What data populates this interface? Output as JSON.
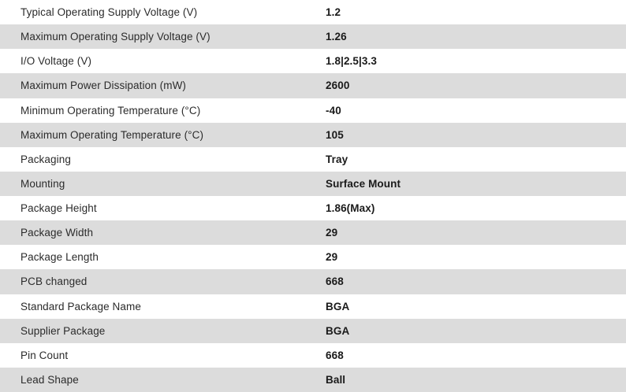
{
  "colors": {
    "row_background": "#ffffff",
    "row_alt_background": "#dcdcdc",
    "label_text": "#2b2b2b",
    "value_text": "#1a1a1a"
  },
  "table": {
    "rows": [
      {
        "label": "Typical Operating Supply Voltage (V)",
        "value": "1.2"
      },
      {
        "label": "Maximum Operating Supply Voltage (V)",
        "value": "1.26"
      },
      {
        "label": "I/O Voltage (V)",
        "value": "1.8|2.5|3.3"
      },
      {
        "label": "Maximum Power Dissipation (mW)",
        "value": "2600"
      },
      {
        "label": "Minimum Operating Temperature (°C)",
        "value": "-40"
      },
      {
        "label": "Maximum Operating Temperature (°C)",
        "value": "105"
      },
      {
        "label": "Packaging",
        "value": "Tray"
      },
      {
        "label": "Mounting",
        "value": "Surface Mount"
      },
      {
        "label": "Package Height",
        "value": "1.86(Max)"
      },
      {
        "label": "Package Width",
        "value": "29"
      },
      {
        "label": "Package Length",
        "value": "29"
      },
      {
        "label": "PCB changed",
        "value": "668"
      },
      {
        "label": "Standard Package Name",
        "value": "BGA"
      },
      {
        "label": "Supplier Package",
        "value": "BGA"
      },
      {
        "label": "Pin Count",
        "value": "668"
      },
      {
        "label": "Lead Shape",
        "value": "Ball"
      }
    ]
  }
}
